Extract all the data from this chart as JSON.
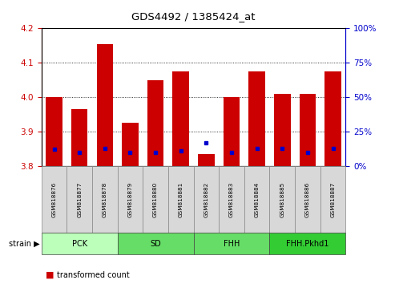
{
  "title": "GDS4492 / 1385424_at",
  "samples": [
    "GSM818876",
    "GSM818877",
    "GSM818878",
    "GSM818879",
    "GSM818880",
    "GSM818881",
    "GSM818882",
    "GSM818883",
    "GSM818884",
    "GSM818885",
    "GSM818886",
    "GSM818887"
  ],
  "transformed_count": [
    4.0,
    3.965,
    4.155,
    3.925,
    4.05,
    4.075,
    3.835,
    4.0,
    4.075,
    4.01,
    4.01,
    4.075
  ],
  "percentile_values": [
    12,
    10,
    13,
    10,
    10,
    11,
    17,
    10,
    13,
    13,
    10,
    13
  ],
  "ylim": [
    3.8,
    4.2
  ],
  "ylim_right": [
    0,
    100
  ],
  "yticks_left": [
    3.8,
    3.9,
    4.0,
    4.1,
    4.2
  ],
  "yticks_right": [
    0,
    25,
    50,
    75,
    100
  ],
  "bar_bottom": 3.8,
  "bar_color": "#cc0000",
  "percentile_color": "#0000cc",
  "groups": [
    {
      "label": "PCK",
      "start": 0,
      "end": 3,
      "color": "#bbffbb"
    },
    {
      "label": "SD",
      "start": 3,
      "end": 6,
      "color": "#66dd66"
    },
    {
      "label": "FHH",
      "start": 6,
      "end": 9,
      "color": "#66dd66"
    },
    {
      "label": "FHH.Pkhd1",
      "start": 9,
      "end": 12,
      "color": "#33cc33"
    }
  ],
  "tick_color_left": "#cc0000",
  "tick_color_right": "#0000cc",
  "background_color": "#ffffff",
  "sample_box_color": "#d8d8d8"
}
